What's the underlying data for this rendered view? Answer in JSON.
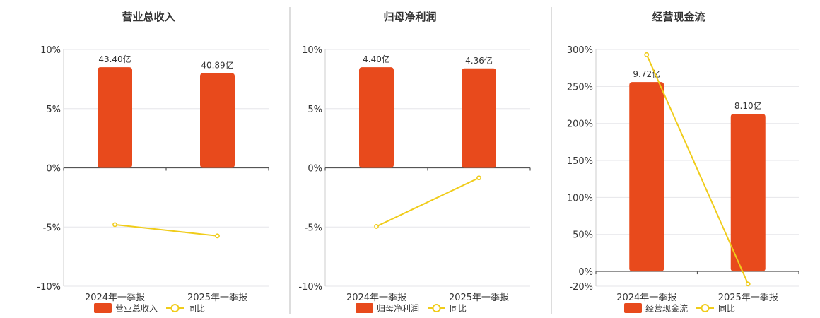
{
  "colors": {
    "bar": "#e84a1c",
    "line": "#f0cc1a"
  },
  "chart_data": [
    {
      "type": "bar",
      "title": "营业总收入",
      "categories": [
        "2024年一季报",
        "2025年一季报"
      ],
      "ylim": [
        -10,
        10
      ],
      "yticks": [
        10,
        5,
        0,
        -5,
        -10
      ],
      "ytick_labels": [
        "10%",
        "5%",
        "0%",
        "-5%",
        "-10%"
      ],
      "series": [
        {
          "name": "营业总收入",
          "kind": "bar",
          "values": [
            8.5,
            8.0
          ],
          "labels": [
            "43.40亿",
            "40.89亿"
          ]
        },
        {
          "name": "同比",
          "kind": "line",
          "values": [
            -4.8,
            -5.75
          ]
        }
      ],
      "grid": true,
      "legend": "bottom"
    },
    {
      "type": "bar",
      "title": "归母净利润",
      "categories": [
        "2024年一季报",
        "2025年一季报"
      ],
      "ylim": [
        -10,
        10
      ],
      "yticks": [
        10,
        5,
        0,
        -5,
        -10
      ],
      "ytick_labels": [
        "10%",
        "5%",
        "0%",
        "-5%",
        "-10%"
      ],
      "series": [
        {
          "name": "归母净利润",
          "kind": "bar",
          "values": [
            8.5,
            8.4
          ],
          "labels": [
            "4.40亿",
            "4.36亿"
          ]
        },
        {
          "name": "同比",
          "kind": "line",
          "values": [
            -4.95,
            -0.85
          ]
        }
      ],
      "grid": true,
      "legend": "bottom"
    },
    {
      "type": "bar",
      "title": "经营现金流",
      "categories": [
        "2024年一季报",
        "2025年一季报"
      ],
      "ylim": [
        -20,
        300
      ],
      "yticks": [
        300,
        250,
        200,
        150,
        100,
        50,
        0,
        -20
      ],
      "ytick_labels": [
        "300%",
        "250%",
        "200%",
        "150%",
        "100%",
        "50%",
        "0%",
        "-20%"
      ],
      "series": [
        {
          "name": "经营现金流",
          "kind": "bar",
          "values": [
            256,
            213
          ],
          "labels": [
            "9.72亿",
            "8.10亿"
          ]
        },
        {
          "name": "同比",
          "kind": "line",
          "values": [
            293,
            -17
          ]
        }
      ],
      "grid": true,
      "legend": "bottom"
    }
  ]
}
